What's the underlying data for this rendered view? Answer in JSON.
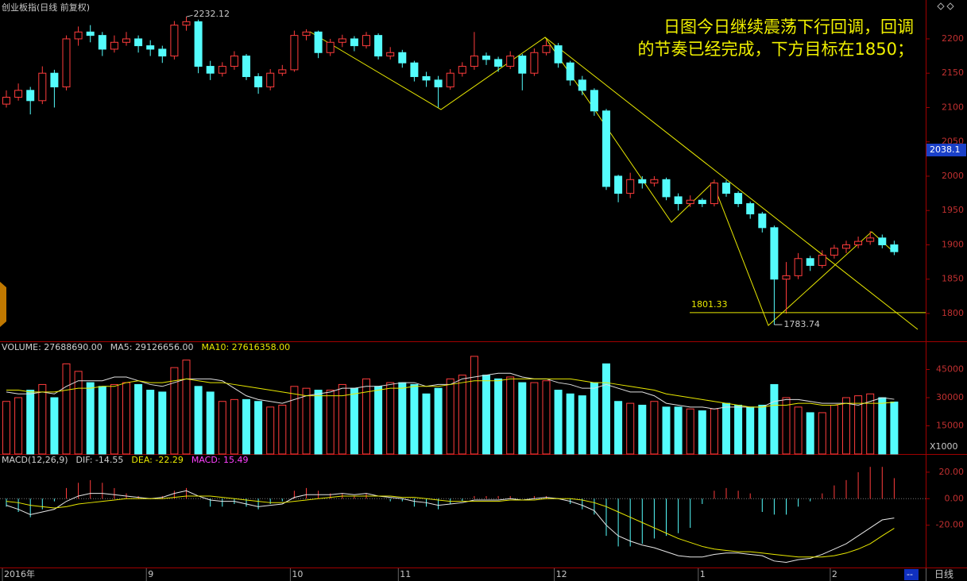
{
  "chart_data": [
    {
      "type": "candlestick",
      "title": "创业板指(日线 前复权)",
      "categories": [
        "2016年",
        null,
        null,
        null,
        null,
        null,
        null,
        null,
        null,
        null,
        null,
        null,
        "9",
        null,
        null,
        null,
        null,
        null,
        null,
        null,
        null,
        null,
        null,
        null,
        "10",
        null,
        null,
        null,
        null,
        null,
        null,
        null,
        null,
        "11",
        null,
        null,
        null,
        null,
        null,
        null,
        null,
        null,
        null,
        null,
        null,
        null,
        "12",
        null,
        null,
        null,
        null,
        null,
        null,
        null,
        null,
        null,
        null,
        null,
        "1",
        null,
        null,
        null,
        null,
        null,
        null,
        null,
        null,
        null,
        null,
        "2",
        null,
        null,
        null,
        null,
        null
      ],
      "open": [
        2105,
        2115,
        2125,
        2110,
        2150,
        2130,
        2200,
        2210,
        2205,
        2185,
        2195,
        2200,
        2190,
        2185,
        2175,
        2220,
        2225,
        2160,
        2150,
        2160,
        2175,
        2145,
        2130,
        2150,
        2155,
        2205,
        2210,
        2180,
        2195,
        2200,
        2190,
        2205,
        2175,
        2180,
        2165,
        2145,
        2140,
        2130,
        2150,
        2160,
        2175,
        2170,
        2160,
        2175,
        2150,
        2180,
        2190,
        2165,
        2140,
        2125,
        2095,
        2000,
        1975,
        1995,
        1990,
        1995,
        1970,
        1960,
        1965,
        1960,
        1990,
        1975,
        1960,
        1945,
        1925,
        1850,
        1855,
        1880,
        1870,
        1885,
        1895,
        1900,
        1905,
        1910,
        1900
      ],
      "high": [
        2125,
        2135,
        2130,
        2160,
        2155,
        2205,
        2218,
        2220,
        2210,
        2205,
        2210,
        2205,
        2198,
        2190,
        2226,
        2232.12,
        2228,
        2168,
        2166,
        2182,
        2178,
        2150,
        2156,
        2162,
        2212,
        2214,
        2212,
        2200,
        2206,
        2204,
        2210,
        2208,
        2188,
        2184,
        2168,
        2152,
        2146,
        2156,
        2166,
        2210,
        2180,
        2174,
        2182,
        2178,
        2186,
        2198,
        2194,
        2168,
        2146,
        2128,
        2098,
        2002,
        2005,
        2000,
        2000,
        1998,
        1975,
        1972,
        1968,
        1995,
        1994,
        1978,
        1963,
        1948,
        1928,
        1875,
        1888,
        1884,
        1892,
        1900,
        1906,
        1912,
        1920,
        1915,
        1906
      ],
      "low": [
        2100,
        2110,
        2090,
        2105,
        2100,
        2125,
        2190,
        2195,
        2175,
        2180,
        2190,
        2180,
        2175,
        2165,
        2170,
        2212,
        2150,
        2140,
        2145,
        2155,
        2140,
        2120,
        2125,
        2146,
        2152,
        2198,
        2172,
        2175,
        2188,
        2182,
        2186,
        2170,
        2170,
        2158,
        2138,
        2130,
        2100,
        2126,
        2145,
        2155,
        2162,
        2152,
        2156,
        2125,
        2146,
        2176,
        2158,
        2132,
        2118,
        2088,
        1980,
        1962,
        1968,
        1982,
        1985,
        1965,
        1950,
        1955,
        1955,
        1956,
        1970,
        1955,
        1938,
        1918,
        1783.74,
        1800,
        1850,
        1862,
        1866,
        1880,
        1888,
        1895,
        1900,
        1895,
        1885
      ],
      "close": [
        2115,
        2125,
        2110,
        2150,
        2130,
        2200,
        2210,
        2205,
        2185,
        2195,
        2200,
        2190,
        2185,
        2175,
        2220,
        2225,
        2160,
        2150,
        2160,
        2175,
        2145,
        2130,
        2150,
        2155,
        2205,
        2210,
        2180,
        2195,
        2200,
        2190,
        2205,
        2175,
        2180,
        2165,
        2145,
        2140,
        2130,
        2150,
        2160,
        2175,
        2170,
        2160,
        2175,
        2150,
        2180,
        2190,
        2165,
        2140,
        2125,
        2095,
        1985,
        1975,
        1995,
        1990,
        1995,
        1970,
        1960,
        1965,
        1960,
        1990,
        1975,
        1960,
        1945,
        1925,
        1850,
        1855,
        1880,
        1870,
        1885,
        1895,
        1900,
        1905,
        1910,
        1900,
        1890
      ],
      "up_color": "#ff3c3c",
      "down_color": "#54fcfc",
      "ylim": [
        1759.5,
        2256.6
      ],
      "yticks": [
        1800,
        1850,
        1900,
        1950,
        2000,
        2050,
        2100,
        2150,
        2200
      ],
      "level_line": 1801.33,
      "last_marker": 2038.1,
      "annotation": [
        "日图今日继续震荡下行回调，回调",
        "的节奏已经完成，下方目标在1850；"
      ]
    },
    {
      "type": "bar",
      "header": [
        {
          "text": "VOLUME: 27688690.00",
          "color": "#d0d0d0"
        },
        {
          "text": "MA5: 29126656.00",
          "color": "#d0d0d0"
        },
        {
          "text": "MA10: 27616358.00",
          "color": "#e8e800"
        }
      ],
      "values": [
        28000,
        30000,
        34000,
        37000,
        30000,
        48000,
        44000,
        38000,
        36000,
        37000,
        38000,
        37000,
        34000,
        33000,
        46000,
        50000,
        36000,
        33000,
        28000,
        29000,
        29000,
        28000,
        25000,
        26000,
        36000,
        35000,
        34000,
        34000,
        37000,
        35000,
        40000,
        36000,
        38000,
        38000,
        37000,
        32000,
        35000,
        40000,
        42000,
        52000,
        42000,
        40000,
        41000,
        38000,
        38000,
        39000,
        34000,
        32000,
        31000,
        38000,
        48000,
        28000,
        27000,
        26000,
        28000,
        25000,
        25000,
        24000,
        23000,
        24000,
        27000,
        26000,
        25000,
        26000,
        37000,
        30000,
        25000,
        22000,
        22000,
        26000,
        30000,
        31000,
        32000,
        30000,
        27688.69
      ],
      "series": [
        {
          "color": "#e0e0e0",
          "values": [
            33000,
            32000,
            32000,
            33000,
            32000,
            36000,
            39000,
            39000,
            39000,
            41000,
            41000,
            39000,
            37000,
            36000,
            38000,
            40000,
            40000,
            40000,
            39000,
            35000,
            31000,
            29000,
            28000,
            27000,
            29000,
            31000,
            32000,
            33000,
            35000,
            35000,
            36000,
            36000,
            37000,
            38000,
            38000,
            36000,
            37000,
            37000,
            40000,
            41000,
            42000,
            43000,
            43000,
            41000,
            40000,
            40000,
            38000,
            37000,
            35000,
            35000,
            37000,
            35000,
            33000,
            33000,
            31000,
            27000,
            26000,
            25000,
            25000,
            24000,
            25000,
            25000,
            25000,
            25000,
            28000,
            29000,
            29000,
            28000,
            27000,
            27000,
            27000,
            26000,
            28000,
            30000,
            29126.66
          ]
        },
        {
          "color": "#e8e800",
          "values": [
            34000,
            34000,
            33000,
            33000,
            33000,
            34000,
            35000,
            35000,
            36000,
            36000,
            38000,
            39000,
            38000,
            38000,
            39000,
            40000,
            39000,
            38000,
            38000,
            37000,
            36000,
            35000,
            34000,
            33000,
            32000,
            31000,
            31000,
            31000,
            31000,
            32000,
            33000,
            34000,
            35000,
            35000,
            36000,
            36000,
            36000,
            37000,
            38000,
            39000,
            39000,
            39000,
            40000,
            40000,
            40000,
            40000,
            40000,
            40000,
            39000,
            38000,
            38000,
            37000,
            36000,
            35000,
            34000,
            32000,
            31000,
            30000,
            29000,
            28000,
            27000,
            26000,
            25000,
            25000,
            26000,
            26000,
            27000,
            27000,
            26000,
            26000,
            27000,
            27000,
            27000,
            27000,
            27616.36
          ]
        }
      ],
      "ylim": [
        0,
        60000
      ],
      "yticks": [
        15000,
        30000,
        45000
      ],
      "unit_label": "X1000"
    },
    {
      "type": "macd",
      "header": [
        {
          "text": "MACD(12,26,9)",
          "color": "#d0d0d0"
        },
        {
          "text": "DIF: -14.55",
          "color": "#d0d0d0"
        },
        {
          "text": "DEA: -22.29",
          "color": "#e8e800"
        },
        {
          "text": "MACD: 15.49",
          "color": "#ff40ff"
        }
      ],
      "values": [
        -6,
        -10,
        -14,
        -8,
        -2,
        8,
        12,
        14,
        12,
        8,
        4,
        2,
        0,
        2,
        6,
        8,
        0,
        -6,
        -6,
        -4,
        -6,
        -8,
        -4,
        -2,
        6,
        8,
        6,
        4,
        4,
        2,
        4,
        0,
        -2,
        -2,
        -6,
        -6,
        -8,
        -4,
        -2,
        2,
        2,
        2,
        2,
        0,
        2,
        2,
        0,
        -4,
        -8,
        -12,
        -28,
        -36,
        -36,
        -34,
        -30,
        -28,
        -26,
        -22,
        -4,
        6,
        8,
        6,
        4,
        -10,
        -12,
        -12,
        -6,
        -2,
        4,
        10,
        14,
        20,
        24,
        24,
        15.49
      ],
      "series": [
        {
          "color": "#e8e8e8",
          "values": [
            -5,
            -8,
            -12,
            -10,
            -8,
            -2,
            2,
            4,
            4,
            3,
            2,
            1,
            0,
            1,
            4,
            6,
            2,
            -1,
            -2,
            -2,
            -4,
            -6,
            -5,
            -4,
            1,
            3,
            3,
            3,
            4,
            3,
            4,
            2,
            1,
            0,
            -2,
            -3,
            -5,
            -4,
            -3,
            -1,
            -1,
            -1,
            0,
            -1,
            0,
            1,
            0,
            -2,
            -5,
            -9,
            -20,
            -28,
            -32,
            -35,
            -37,
            -40,
            -43,
            -44,
            -44,
            -42,
            -41,
            -41,
            -42,
            -43,
            -47,
            -48,
            -46,
            -45,
            -42,
            -38,
            -34,
            -28,
            -22,
            -16,
            -14.55
          ]
        },
        {
          "color": "#e8e800",
          "values": [
            -2,
            -3,
            -5,
            -6,
            -7,
            -6,
            -4,
            -3,
            -2,
            -1,
            0,
            0,
            0,
            0,
            1,
            2,
            2,
            2,
            1,
            0,
            -1,
            -2,
            -3,
            -3,
            -2,
            -1,
            0,
            1,
            2,
            2,
            2,
            2,
            2,
            1,
            1,
            0,
            -1,
            -2,
            -2,
            -2,
            -2,
            -2,
            -1,
            -1,
            -1,
            0,
            0,
            0,
            -1,
            -3,
            -6,
            -10,
            -14,
            -18,
            -22,
            -26,
            -30,
            -33,
            -36,
            -38,
            -39,
            -40,
            -40,
            -41,
            -42,
            -43,
            -44,
            -44,
            -44,
            -43,
            -41,
            -38,
            -34,
            -28,
            -22.29
          ]
        }
      ],
      "up_color": "#ff3c3c",
      "down_color": "#54fcfc",
      "ylim": [
        -51.9,
        33.7
      ],
      "yticks": [
        {
          "value": -20,
          "label": "-20.00"
        },
        {
          "value": 0,
          "label": "0.00"
        },
        {
          "value": 20,
          "label": "20.00"
        }
      ]
    }
  ],
  "ui": {
    "period": "日线",
    "marker": "--"
  }
}
